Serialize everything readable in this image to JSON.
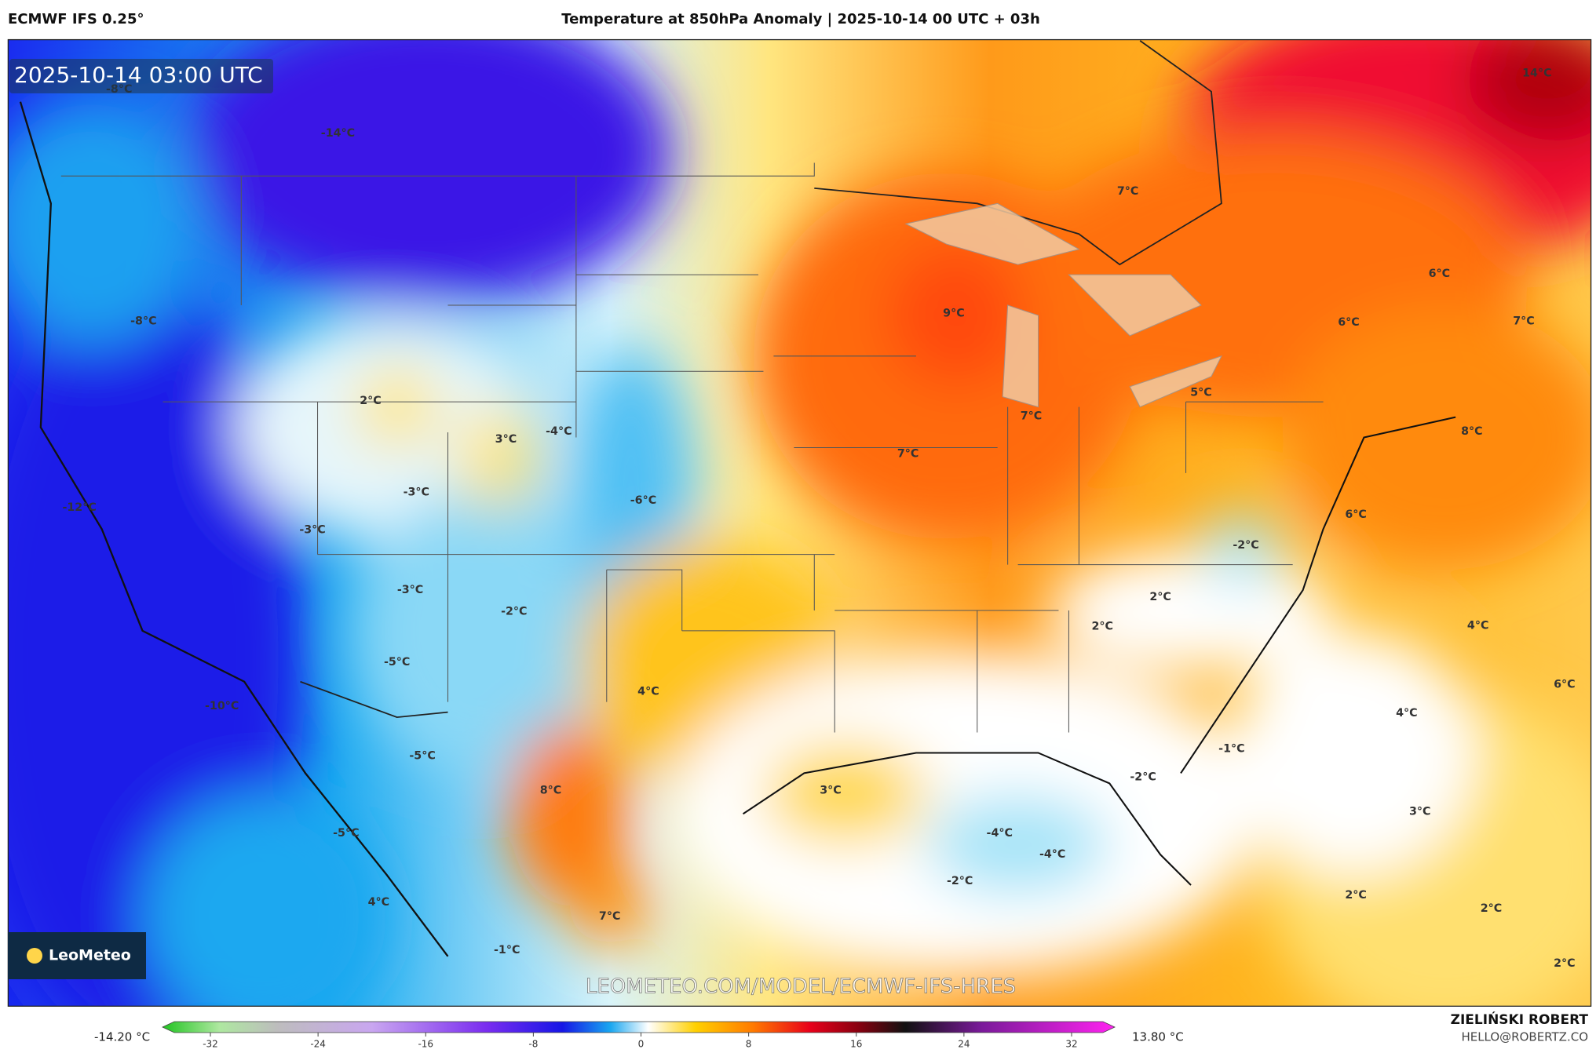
{
  "header": {
    "model": "ECMWF IFS 0.25°",
    "title": "Temperature at 850hPa Anomaly | 2025-10-14 00 UTC + 03h"
  },
  "map": {
    "timestamp": "2025-10-14 03:00 UTC",
    "labels": [
      "-8°C",
      "-14°C",
      "-8°C",
      "2°C",
      "3°C",
      "-4°C",
      "-3°C",
      "-6°C",
      "-12°C",
      "-3°C",
      "-3°C",
      "-2°C",
      "-5°C",
      "-10°C",
      "4°C",
      "-5°C",
      "8°C",
      "-5°C",
      "4°C",
      "7°C",
      "-1°C",
      "7°C",
      "14°C",
      "6°C",
      "6°C",
      "7°C",
      "9°C",
      "5°C",
      "7°C",
      "7°C",
      "8°C",
      "6°C",
      "-2°C",
      "2°C",
      "2°C",
      "4°C",
      "6°C",
      "4°C",
      "-1°C",
      "-2°C",
      "3°C",
      "3°C",
      "-4°C",
      "-4°C",
      "-2°C",
      "2°C",
      "2°C",
      "2°C"
    ],
    "logo": "LeoMeteo",
    "watermark": "LEOMETEO.COM/MODEL/ECMWF-IFS-HRES"
  },
  "colorbar": {
    "min_label": "-14.20 °C",
    "max_label": "13.80 °C",
    "ticks": [
      -32,
      -24,
      -16,
      -8,
      0,
      8,
      16,
      24,
      32
    ]
  },
  "footer": {
    "author": "ZIELIŃSKI ROBERT",
    "email": "HELLO@ROBERTZ.CO"
  }
}
